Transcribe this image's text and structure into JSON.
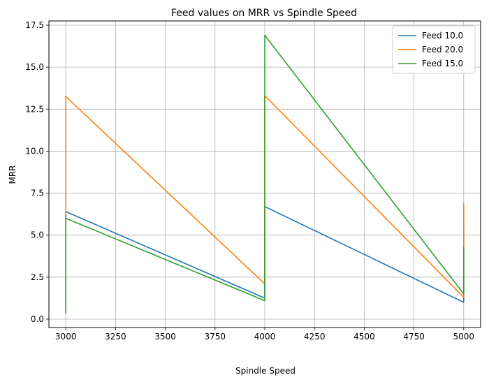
{
  "chart_data": {
    "type": "line",
    "title": "Feed values on MRR vs Spindle Speed",
    "xlabel": "Spindle Speed",
    "ylabel": "MRR",
    "xlim": [
      2915,
      5085
    ],
    "ylim": [
      -0.5,
      17.75
    ],
    "xticks": [
      3000,
      3250,
      3500,
      3750,
      4000,
      4250,
      4500,
      4750,
      5000
    ],
    "xtick_labels": [
      "3000",
      "3250",
      "3500",
      "3750",
      "4000",
      "4250",
      "4500",
      "4750",
      "5000"
    ],
    "yticks": [
      0.0,
      2.5,
      5.0,
      7.5,
      10.0,
      12.5,
      15.0,
      17.5
    ],
    "ytick_labels": [
      "0.0",
      "2.5",
      "5.0",
      "7.5",
      "10.0",
      "12.5",
      "15.0",
      "17.5"
    ],
    "grid": true,
    "legend_position": "top-right",
    "series": [
      {
        "name": "Feed 10.0",
        "color": "#1f77b4",
        "x": [
          3000,
          3000,
          3000,
          4000,
          4000,
          4000,
          5000,
          5000
        ],
        "y": [
          0.8,
          6.2,
          6.4,
          1.25,
          6.3,
          6.7,
          1.0,
          5.9
        ]
      },
      {
        "name": "Feed 20.0",
        "color": "#ff7f0e",
        "x": [
          3000,
          3000,
          3000,
          4000,
          4000,
          4000,
          5000,
          5000
        ],
        "y": [
          6.2,
          12.6,
          13.25,
          2.1,
          12.7,
          13.3,
          1.3,
          6.9
        ]
      },
      {
        "name": "Feed 15.0",
        "color": "#2ca02c",
        "x": [
          3000,
          3000,
          3000,
          4000,
          4000,
          4000,
          5000,
          5000
        ],
        "y": [
          0.35,
          5.5,
          6.0,
          1.1,
          16.0,
          16.9,
          1.5,
          4.3
        ]
      }
    ]
  }
}
